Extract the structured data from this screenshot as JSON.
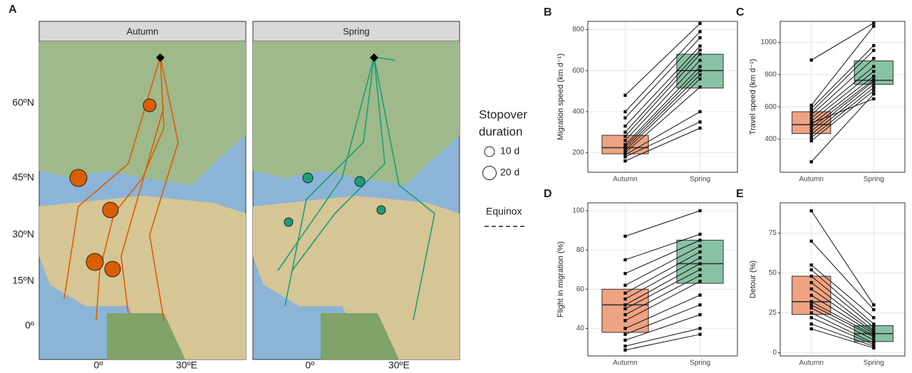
{
  "map": {
    "panel_label": "A",
    "facets": [
      "Autumn",
      "Spring"
    ],
    "lat_labels": [
      "60ºN",
      "45ºN",
      "30ºN",
      "15ºN",
      "0º"
    ],
    "lon_labels": [
      "0º",
      "30ºE"
    ],
    "legend": {
      "title_1": "Stopover",
      "title_2": "duration",
      "sizes": [
        "10 d",
        "20 d"
      ],
      "line": "Equinox"
    }
  },
  "chart_data": [
    {
      "type": "paired-box",
      "panel_label": "B",
      "ylabel": "Migration speed (km d⁻¹)",
      "categories": [
        "Autumn",
        "Spring"
      ],
      "ylim": [
        105,
        840
      ],
      "yticks": [
        200,
        400,
        600,
        800
      ],
      "boxes": [
        {
          "q1": 195,
          "median": 225,
          "q3": 285,
          "color": "#efa382"
        },
        {
          "q1": 515,
          "median": 600,
          "q3": 680,
          "color": "#88c2a5"
        }
      ],
      "points": [
        [
          480,
          400,
          370,
          330,
          300,
          280,
          260,
          240,
          230,
          220,
          210,
          200,
          190,
          180,
          160
        ],
        [
          830,
          790,
          760,
          720,
          700,
          680,
          650,
          620,
          600,
          580,
          560,
          520,
          400,
          350,
          320
        ]
      ]
    },
    {
      "type": "paired-box",
      "panel_label": "C",
      "ylabel": "Travel speed (km d⁻¹)",
      "categories": [
        "Autumn",
        "Spring"
      ],
      "ylim": [
        195,
        1130
      ],
      "yticks": [
        400,
        600,
        800,
        1000
      ],
      "boxes": [
        {
          "q1": 435,
          "median": 490,
          "q3": 570,
          "color": "#efa382"
        },
        {
          "q1": 740,
          "median": 765,
          "q3": 885,
          "color": "#88c2a5"
        }
      ],
      "points": [
        [
          890,
          610,
          590,
          570,
          550,
          530,
          510,
          490,
          470,
          450,
          430,
          410,
          390,
          260,
          500
        ],
        [
          1120,
          1100,
          980,
          950,
          900,
          850,
          820,
          790,
          770,
          760,
          740,
          720,
          700,
          680,
          650
        ]
      ]
    },
    {
      "type": "paired-box",
      "panel_label": "D",
      "ylabel": "Flight in migration (%)",
      "categories": [
        "Autumn",
        "Spring"
      ],
      "ylim": [
        26,
        104
      ],
      "yticks": [
        40,
        60,
        80,
        100
      ],
      "boxes": [
        {
          "q1": 38,
          "median": 52,
          "q3": 60,
          "color": "#efa382"
        },
        {
          "q1": 63,
          "median": 73,
          "q3": 85,
          "color": "#88c2a5"
        }
      ],
      "points": [
        [
          87,
          75,
          68,
          62,
          58,
          55,
          52,
          50,
          47,
          44,
          40,
          37,
          34,
          31,
          29
        ],
        [
          100,
          88,
          85,
          82,
          79,
          76,
          73,
          70,
          67,
          64,
          57,
          52,
          47,
          40,
          37
        ]
      ]
    },
    {
      "type": "paired-box",
      "panel_label": "E",
      "ylabel": "Detour (%)",
      "categories": [
        "Autumn",
        "Spring"
      ],
      "ylim": [
        -2,
        94
      ],
      "yticks": [
        0,
        25,
        50,
        75
      ],
      "boxes": [
        {
          "q1": 24,
          "median": 32,
          "q3": 48,
          "color": "#efa382"
        },
        {
          "q1": 7,
          "median": 12,
          "q3": 17,
          "color": "#88c2a5"
        }
      ],
      "points": [
        [
          89,
          70,
          55,
          52,
          48,
          44,
          40,
          36,
          32,
          30,
          28,
          25,
          22,
          18,
          15
        ],
        [
          30,
          27,
          22,
          18,
          16,
          14,
          13,
          12,
          11,
          10,
          8,
          6,
          5,
          4,
          3
        ]
      ]
    }
  ]
}
